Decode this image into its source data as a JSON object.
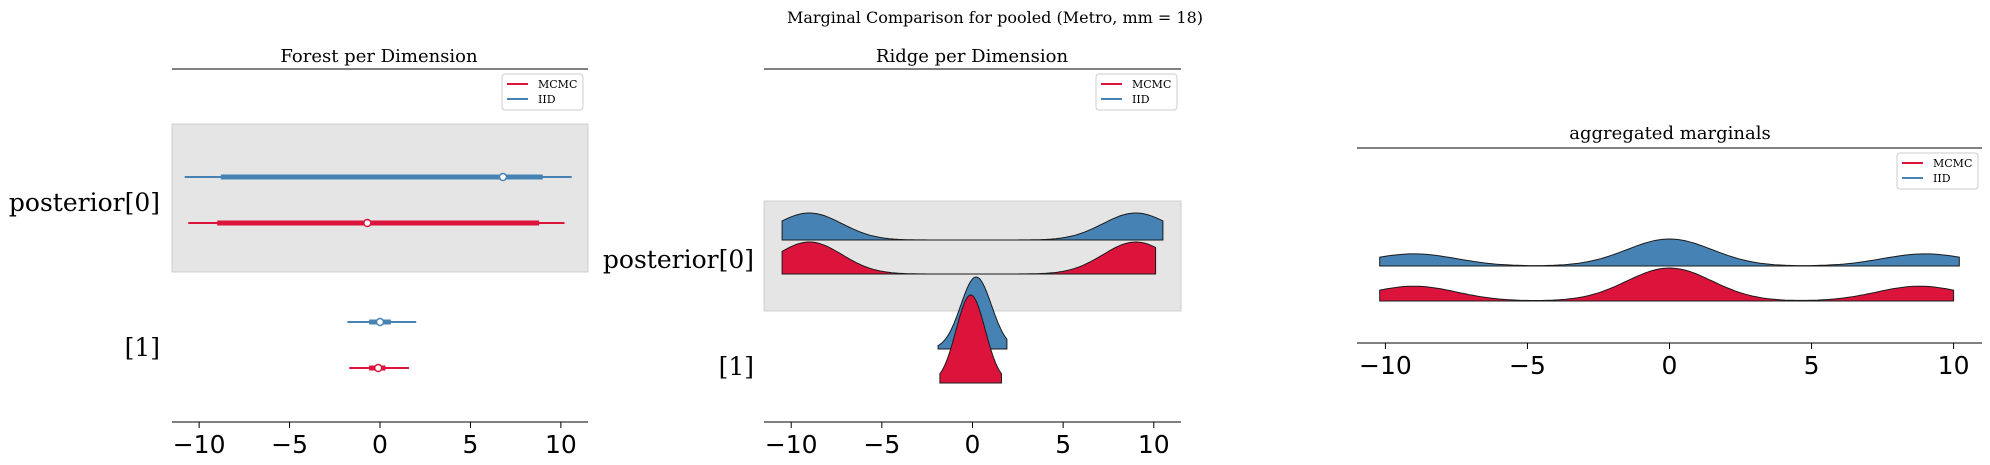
{
  "title": "Marginal Comparison for pooled (Metro, mm = 18)",
  "colors": {
    "MCMC": "#dc143c",
    "IID": "#4682b4",
    "band": "#e5e5e5"
  },
  "legend": [
    "MCMC",
    "IID"
  ],
  "chart_data": [
    {
      "type": "forest",
      "title": "Forest per Dimension",
      "xlim": [
        -11.5,
        11.5
      ],
      "xticks": [
        -10,
        -5,
        0,
        5,
        10
      ],
      "row_labels": [
        "posterior[0]",
        "[1]"
      ],
      "series": [
        {
          "name": "IID",
          "rows": [
            {
              "hdi": [
                -10.8,
                10.6
              ],
              "iqr": [
                -8.8,
                9.0
              ],
              "point": 6.8
            },
            {
              "hdi": [
                -1.8,
                2.0
              ],
              "iqr": [
                -0.6,
                0.6
              ],
              "point": 0.0
            }
          ]
        },
        {
          "name": "MCMC",
          "rows": [
            {
              "hdi": [
                -10.6,
                10.2
              ],
              "iqr": [
                -9.0,
                8.8
              ],
              "point": -0.7
            },
            {
              "hdi": [
                -1.7,
                1.6
              ],
              "iqr": [
                -0.6,
                0.3
              ],
              "point": -0.1
            }
          ]
        }
      ]
    },
    {
      "type": "ridge",
      "title": "Ridge per Dimension",
      "xlim": [
        -11.5,
        11.5
      ],
      "xticks": [
        -10,
        -5,
        0,
        5,
        10
      ],
      "row_labels": [
        "posterior[0]",
        "[1]"
      ],
      "series": [
        {
          "name": "IID",
          "rows": [
            {
              "range": [
                -10.5,
                10.5
              ],
              "modes": [
                [
                  -9,
                  1.8,
                  1.0
                ],
                [
                  9,
                  1.8,
                  1.0
                ]
              ]
            },
            {
              "range": [
                -1.9,
                1.9
              ],
              "modes": [
                [
                  0.2,
                  0.85,
                  1.0
                ]
              ]
            }
          ]
        },
        {
          "name": "MCMC",
          "rows": [
            {
              "range": [
                -10.5,
                10.1
              ],
              "modes": [
                [
                  -9,
                  1.8,
                  1.0
                ],
                [
                  9,
                  1.8,
                  1.0
                ]
              ]
            },
            {
              "range": [
                -1.8,
                1.6
              ],
              "modes": [
                [
                  -0.1,
                  0.8,
                  1.0
                ]
              ]
            }
          ]
        }
      ]
    },
    {
      "type": "ridge",
      "title": "aggregated marginals",
      "xlim": [
        -11,
        11
      ],
      "xticks": [
        -10,
        -5,
        0,
        5,
        10
      ],
      "series": [
        {
          "name": "IID",
          "range": [
            -10.2,
            10.2
          ],
          "modes": [
            [
              -9,
              1.5,
              0.45
            ],
            [
              0,
              1.5,
              1.0
            ],
            [
              9,
              1.5,
              0.45
            ]
          ]
        },
        {
          "name": "MCMC",
          "range": [
            -10.2,
            10.0
          ],
          "modes": [
            [
              -9,
              1.5,
              0.45
            ],
            [
              0,
              1.5,
              1.0
            ],
            [
              8.8,
              1.5,
              0.45
            ]
          ]
        }
      ]
    }
  ]
}
